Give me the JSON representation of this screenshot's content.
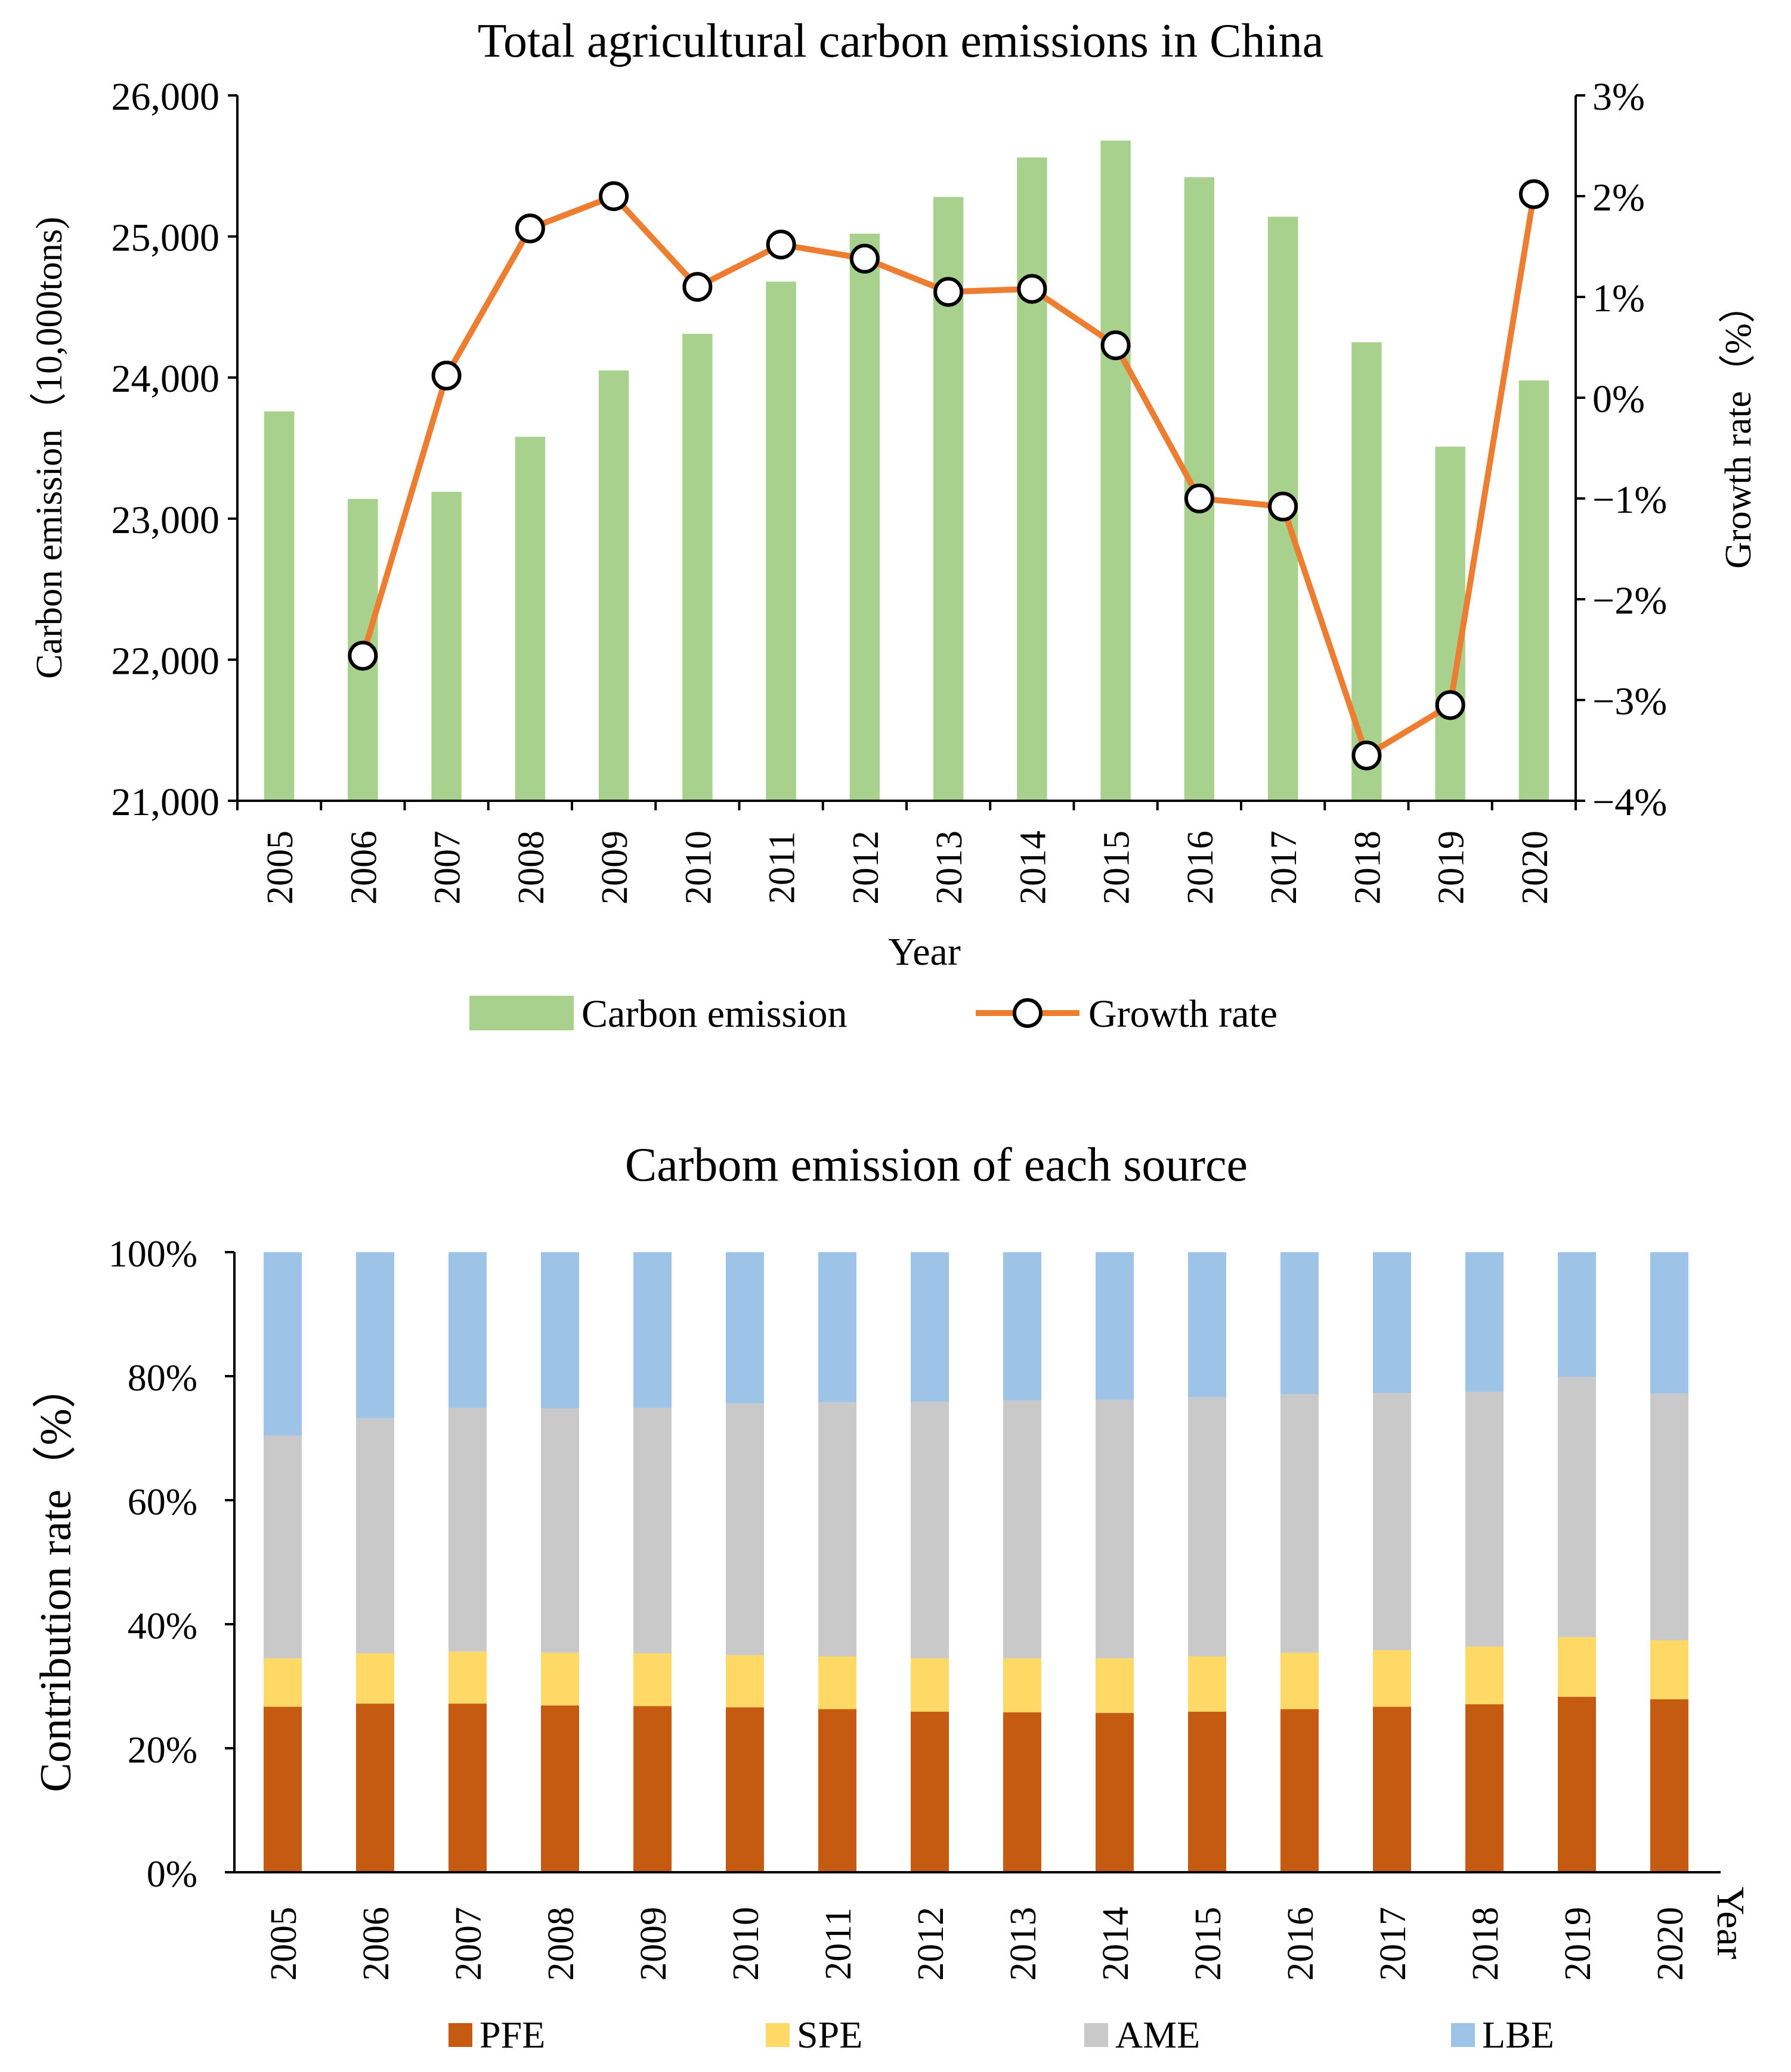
{
  "chart_data": [
    {
      "type": "bar",
      "title": "Total agricultural carbon emissions in China",
      "xlabel": "Year",
      "ylabel": "Carbon emission（10,000tons)",
      "y2label": "Growth rate（%）",
      "categories": [
        "2005",
        "2006",
        "2007",
        "2008",
        "2009",
        "2010",
        "2011",
        "2012",
        "2013",
        "2014",
        "2015",
        "2016",
        "2017",
        "2018",
        "2019",
        "2020"
      ],
      "ylim": [
        21000,
        26000
      ],
      "yticks": [
        21000,
        22000,
        23000,
        24000,
        25000,
        26000
      ],
      "ytick_labels": [
        "21,000",
        "22,000",
        "23,000",
        "24,000",
        "25,000",
        "26,000"
      ],
      "y2lim": [
        -4,
        3
      ],
      "y2ticks": [
        -4,
        -3,
        -2,
        -1,
        0,
        1,
        2,
        3
      ],
      "y2tick_labels": [
        "−4%",
        "−3%",
        "−2%",
        "−1%",
        "0%",
        "1%",
        "2%",
        "3%"
      ],
      "series": [
        {
          "name": "Carbon emission",
          "type": "bar",
          "axis": "left",
          "color": "#a9d18e",
          "values": [
            23760,
            23140,
            23190,
            23580,
            24050,
            24310,
            24680,
            25020,
            25280,
            25560,
            25680,
            25420,
            25140,
            24250,
            23510,
            23980
          ]
        },
        {
          "name": "Growth rate",
          "type": "line",
          "axis": "right",
          "color": "#ed7d31",
          "marker": "open-circle",
          "values": [
            null,
            -2.56,
            0.22,
            1.68,
            2.0,
            1.1,
            1.52,
            1.38,
            1.05,
            1.08,
            0.52,
            -1.0,
            -1.08,
            -3.55,
            -3.05,
            2.02
          ]
        }
      ],
      "legend": "bottom"
    },
    {
      "type": "bar",
      "stacked": true,
      "percent": true,
      "title": "Carbom emission of each source",
      "xlabel": "Year",
      "ylabel": "Contribution rate（%）",
      "categories": [
        "2005",
        "2006",
        "2007",
        "2008",
        "2009",
        "2010",
        "2011",
        "2012",
        "2013",
        "2014",
        "2015",
        "2016",
        "2017",
        "2018",
        "2019",
        "2020"
      ],
      "ylim": [
        0,
        100
      ],
      "yticks": [
        0,
        20,
        40,
        60,
        80,
        100
      ],
      "ytick_labels": [
        "0%",
        "20%",
        "40%",
        "60%",
        "80%",
        "100%"
      ],
      "series": [
        {
          "name": "PFE",
          "color": "#c55a11",
          "values": [
            26.7,
            27.2,
            27.2,
            26.9,
            26.8,
            26.6,
            26.3,
            25.9,
            25.8,
            25.7,
            25.9,
            26.3,
            26.7,
            27.1,
            28.3,
            27.9
          ]
        },
        {
          "name": "SPE",
          "color": "#ffd966",
          "values": [
            7.8,
            8.1,
            8.4,
            8.5,
            8.5,
            8.4,
            8.5,
            8.6,
            8.7,
            8.8,
            8.9,
            9.1,
            9.1,
            9.3,
            9.6,
            9.5
          ]
        },
        {
          "name": "AME",
          "color": "#c9c9c9",
          "values": [
            35.9,
            37.9,
            39.3,
            39.4,
            39.6,
            40.6,
            41.0,
            41.4,
            41.6,
            41.7,
            41.8,
            41.7,
            41.5,
            41.1,
            42.0,
            39.8
          ]
        },
        {
          "name": "LBE",
          "color": "#9dc3e6",
          "values": [
            29.6,
            26.8,
            25.1,
            25.2,
            25.1,
            24.4,
            24.2,
            24.1,
            23.9,
            23.8,
            23.4,
            22.9,
            22.7,
            22.5,
            20.1,
            22.8
          ]
        }
      ],
      "legend": "bottom"
    }
  ]
}
